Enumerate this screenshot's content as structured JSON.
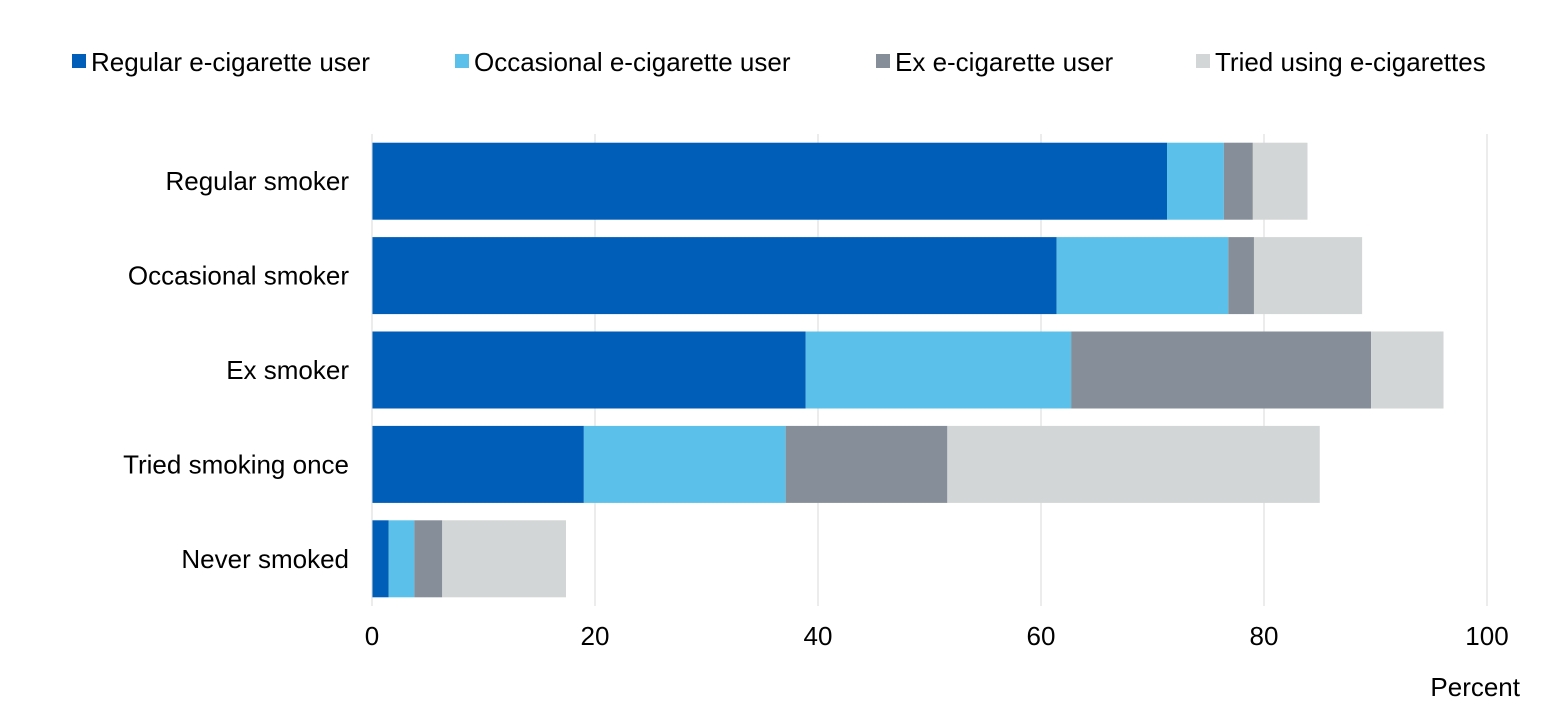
{
  "chart_data": {
    "type": "bar",
    "orientation": "horizontal",
    "stacked": true,
    "title": "",
    "xlabel": "Percent",
    "ylabel": "",
    "xlim": [
      0,
      100
    ],
    "xticks": [
      0,
      20,
      40,
      60,
      80,
      100
    ],
    "grid": "vertical",
    "legend_position": "top",
    "categories": [
      "Regular smoker",
      "Occasional smoker",
      "Ex smoker",
      "Tried smoking once",
      "Never smoked"
    ],
    "series": [
      {
        "name": "Regular e-cigarette user",
        "color": "#005EB8",
        "values": [
          71.3,
          61.4,
          38.9,
          19.0,
          1.5
        ]
      },
      {
        "name": "Occasional e-cigarette user",
        "color": "#5BC0EA",
        "values": [
          5.1,
          15.4,
          23.8,
          18.1,
          2.3
        ]
      },
      {
        "name": "Ex e-cigarette user",
        "color": "#868F99",
        "values": [
          2.6,
          2.3,
          26.9,
          14.5,
          2.5
        ]
      },
      {
        "name": "Tried using e-cigarettes",
        "color": "#D2D6D6",
        "values": [
          4.9,
          9.7,
          6.5,
          33.4,
          11.1
        ]
      }
    ]
  }
}
